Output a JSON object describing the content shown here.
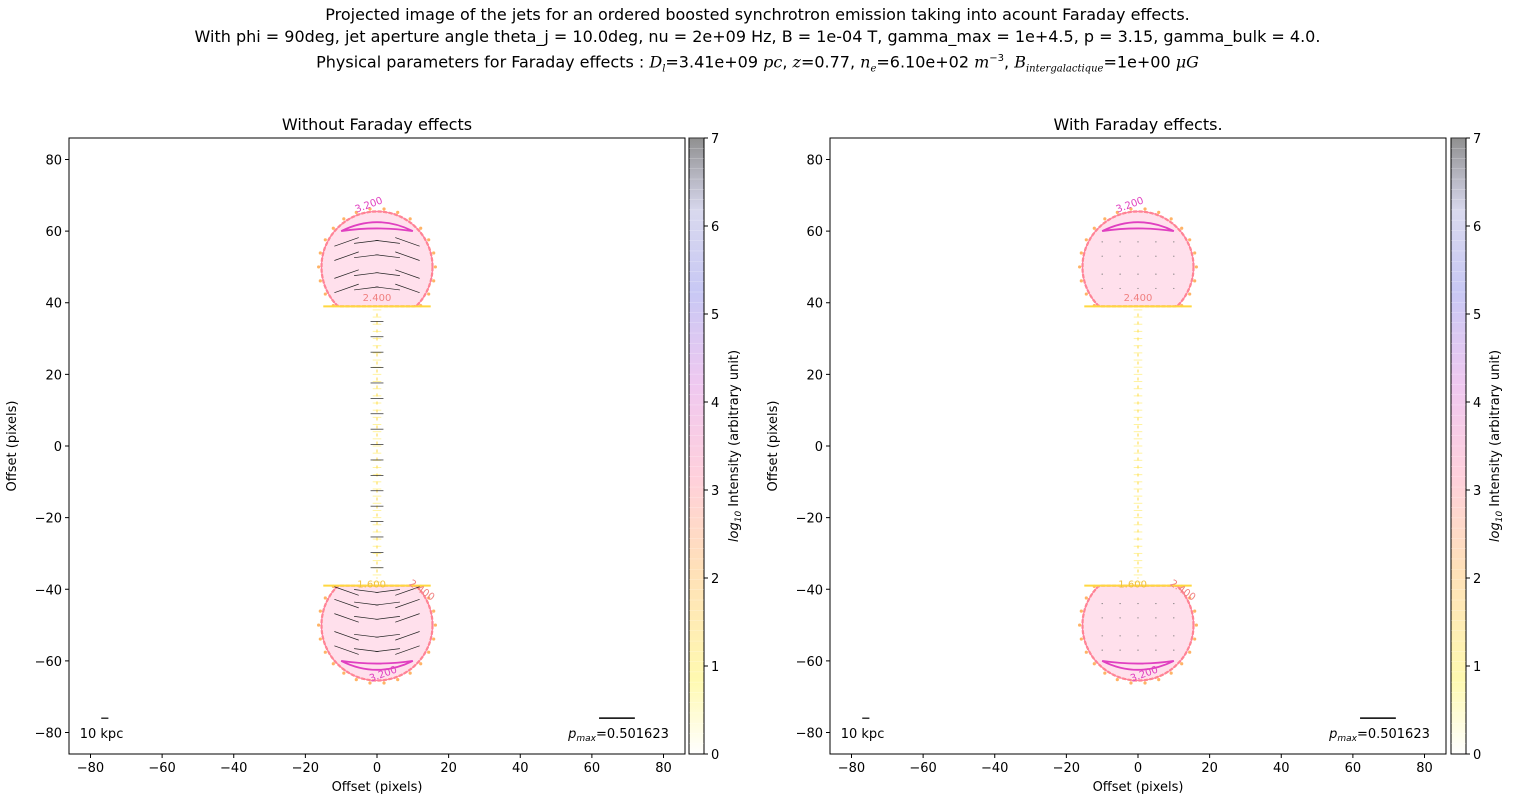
{
  "figure": {
    "title_line1": "Projected image of the jets for an ordered boosted synchrotron emission taking into acount Faraday effects.",
    "title_line2": "With phi = 90deg, jet aperture angle theta_j = 10.0deg, nu = 2e+09 Hz, B = 1e-04 T, gamma_max = 1e+4.5, p = 3.15, gamma_bulk = 4.0.",
    "title_line3_prefix": "Physical parameters for Faraday effects : ",
    "title_Dl": "=3.41e+09 ",
    "title_z": "=0.77, ",
    "title_ne": "=6.10e+02 ",
    "title_B": "=1e+00 "
  },
  "chart_data": [
    {
      "type": "heatmap",
      "title": "Without Faraday effects",
      "xlabel": "Offset (pixels)",
      "ylabel": "Offset (pixels)",
      "xlim": [
        -86,
        86
      ],
      "ylim": [
        -86,
        86
      ],
      "xticks": [
        -80,
        -60,
        -40,
        -20,
        0,
        20,
        40,
        60,
        80
      ],
      "yticks": [
        -80,
        -60,
        -40,
        -20,
        0,
        20,
        40,
        60,
        80
      ],
      "colorbar": {
        "label": "Intensity (arbitrary unit)",
        "label_prefix": "log",
        "label_sub": "10",
        "range": [
          0,
          7
        ],
        "ticks": [
          0,
          1,
          2,
          3,
          4,
          5,
          6,
          7
        ]
      },
      "contours": [
        {
          "level": "3.200",
          "color": "#e040c0",
          "x": -2,
          "y": 66.5
        },
        {
          "level": "2.400",
          "color": "#f08080",
          "x": 0,
          "y": 40.5
        },
        {
          "level": "1.600",
          "color": "#f0c040",
          "x": -1.5,
          "y": -39.5
        },
        {
          "level": "2.400",
          "color": "#f08080",
          "x": 12,
          "y": -41
        },
        {
          "level": "3.200",
          "color": "#e040c0",
          "x": 2,
          "y": -64.5
        }
      ],
      "scale_label": "10 kpc",
      "pmax_label": "=0.501623",
      "polarization_vectors": true
    },
    {
      "type": "heatmap",
      "title": "With Faraday effects.",
      "xlabel": "Offset (pixels)",
      "ylabel": "Offset (pixels)",
      "xlim": [
        -86,
        86
      ],
      "ylim": [
        -86,
        86
      ],
      "xticks": [
        -80,
        -60,
        -40,
        -20,
        0,
        20,
        40,
        60,
        80
      ],
      "yticks": [
        -80,
        -60,
        -40,
        -20,
        0,
        20,
        40,
        60,
        80
      ],
      "colorbar": {
        "label": "Intensity (arbitrary unit)",
        "label_prefix": "log",
        "label_sub": "10",
        "range": [
          0,
          7
        ],
        "ticks": [
          0,
          1,
          2,
          3,
          4,
          5,
          6,
          7
        ]
      },
      "contours": [
        {
          "level": "3.200",
          "color": "#e040c0",
          "x": -2,
          "y": 66.5
        },
        {
          "level": "2.400",
          "color": "#f08080",
          "x": 0,
          "y": 40.5
        },
        {
          "level": "1.600",
          "color": "#f0c040",
          "x": -1.5,
          "y": -39.5
        },
        {
          "level": "2.400",
          "color": "#f08080",
          "x": 12,
          "y": -41
        },
        {
          "level": "3.200",
          "color": "#e040c0",
          "x": 2,
          "y": -64.5
        }
      ],
      "scale_label": "10 kpc",
      "pmax_label": "=0.501623",
      "polarization_vectors": false
    }
  ]
}
